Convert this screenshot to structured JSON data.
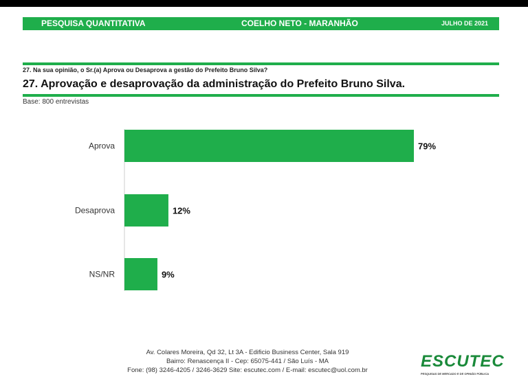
{
  "header": {
    "left": "PESQUISA QUANTITATIVA",
    "center": "COELHO NETO - MARANHÃO",
    "right": "JULHO DE 2021"
  },
  "question": "27. Na sua opinião, o Sr.(a) Aprova ou Desaprova a gestão do Prefeito Bruno Silva?",
  "base": "Base: 800 entrevistas",
  "colors": {
    "accent": "#1fae4b"
  },
  "chart_data": {
    "type": "bar",
    "orientation": "horizontal",
    "title": "27. Aprovação e desaprovação da administração do Prefeito Bruno Silva.",
    "categories": [
      "Aprova",
      "Desaprova",
      "NS/NR"
    ],
    "values": [
      79,
      12,
      9
    ],
    "labels": [
      "79%",
      "12%",
      "9%"
    ],
    "xlim": [
      0,
      100
    ]
  },
  "footer": {
    "line1": "Av. Colares Moreira, Qd 32, Lt 3A - Edificio Business Center, Sala 919",
    "line2": "Bairro: Renascença II - Cep: 65075-441 / São Luís - MA",
    "line3": "Fone: (98) 3246-4205 / 3246-3629 Site: escutec.com / E-mail: escutec@uol.com.br"
  },
  "logo": {
    "name": "ESCUTEC",
    "tagline": "PESQUISAS DE MERCADO E DE OPINIÃO PÚBLICA"
  }
}
